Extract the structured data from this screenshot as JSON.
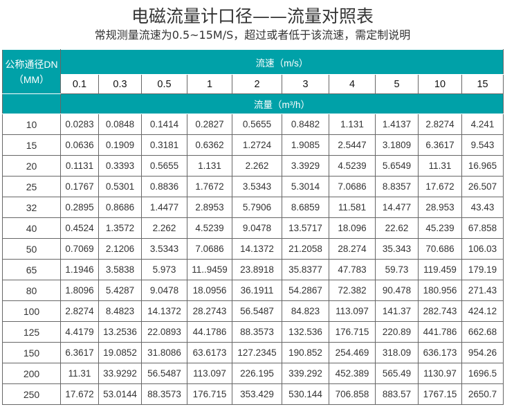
{
  "title": "电磁流量计口径——流量对照表",
  "subtitle": "常规测量流速为0.5~15M/S，超过或者低于该流速，需定制说明",
  "colors": {
    "header_bg": "#00a1a8",
    "header_text": "#ffffff",
    "border": "#666666"
  },
  "table": {
    "corner_label_line1": "公称通径DN",
    "corner_label_line2": "（MM）",
    "velocity_header": "流速（m/s）",
    "flow_header": "流量（m³/h）",
    "velocities": [
      "0.1",
      "0.3",
      "0.5",
      "1",
      "2",
      "3",
      "4",
      "5",
      "10",
      "15"
    ],
    "rows": [
      {
        "dn": "10",
        "values": [
          "0.0283",
          "0.0848",
          "0.1414",
          "0.2827",
          "0.5655",
          "0.8482",
          "1.131",
          "1.4137",
          "2.8274",
          "4.241"
        ]
      },
      {
        "dn": "15",
        "values": [
          "0.0636",
          "0.1909",
          "0.3181",
          "0.6362",
          "1.2724",
          "1.9085",
          "2.5447",
          "3.1809",
          "6.3617",
          "9.543"
        ]
      },
      {
        "dn": "20",
        "values": [
          "0.1131",
          "0.3393",
          "0.5655",
          "1.131",
          "2.262",
          "3.3929",
          "4.5239",
          "5.6549",
          "11.31",
          "16.965"
        ]
      },
      {
        "dn": "25",
        "values": [
          "0.1767",
          "0.5301",
          "0.8836",
          "1.7672",
          "3.5343",
          "5.3014",
          "7.0686",
          "8.8357",
          "17.672",
          "26.507"
        ]
      },
      {
        "dn": "32",
        "values": [
          "0.2895",
          "0.8686",
          "1.4477",
          "2.8953",
          "5.7906",
          "8.6859",
          "11.581",
          "14.477",
          "28.953",
          "43.43"
        ]
      },
      {
        "dn": "40",
        "values": [
          "0.4524",
          "1.3572",
          "2.262",
          "4.5239",
          "9.0478",
          "13.5717",
          "18.096",
          "22.62",
          "45.239",
          "67.858"
        ]
      },
      {
        "dn": "50",
        "values": [
          "0.7069",
          "2.1206",
          "3.5343",
          "7.0686",
          "14.1372",
          "21.2058",
          "28.274",
          "35.343",
          "70.686",
          "106.03"
        ]
      },
      {
        "dn": "65",
        "values": [
          "1.1946",
          "3.5838",
          "5.973",
          "11..9459",
          "23.8918",
          "35.8377",
          "47.783",
          "59.73",
          "119.459",
          "179.19"
        ]
      },
      {
        "dn": "80",
        "values": [
          "1.8096",
          "5.4287",
          "9.0478",
          "18.0956",
          "36.1911",
          "54.2867",
          "72.382",
          "90.478",
          "180.956",
          "271.43"
        ]
      },
      {
        "dn": "100",
        "values": [
          "2.8274",
          "8.4823",
          "14.1372",
          "28.2743",
          "56.5487",
          "84.823",
          "113.097",
          "141.37",
          "282.743",
          "424.12"
        ]
      },
      {
        "dn": "125",
        "values": [
          "4.4179",
          "13.2536",
          "22.0893",
          "44.1786",
          "88.3573",
          "132.536",
          "176.715",
          "220.89",
          "441.786",
          "662.68"
        ]
      },
      {
        "dn": "150",
        "values": [
          "6.3617",
          "19.0852",
          "31.8086",
          "63.6173",
          "127.2345",
          "190.852",
          "254.469",
          "318.09",
          "636.173",
          "954.26"
        ]
      },
      {
        "dn": "200",
        "values": [
          "11.31",
          "33.9292",
          "56.5487",
          "113.097",
          "226.195",
          "339.292",
          "452.389",
          "565.49",
          "1130.97",
          "1696.5"
        ]
      },
      {
        "dn": "250",
        "values": [
          "17.672",
          "53.0144",
          "88.3573",
          "176.715",
          "353.429",
          "530.144",
          "706.858",
          "883.57",
          "1767.15",
          "2650.7"
        ]
      }
    ]
  }
}
